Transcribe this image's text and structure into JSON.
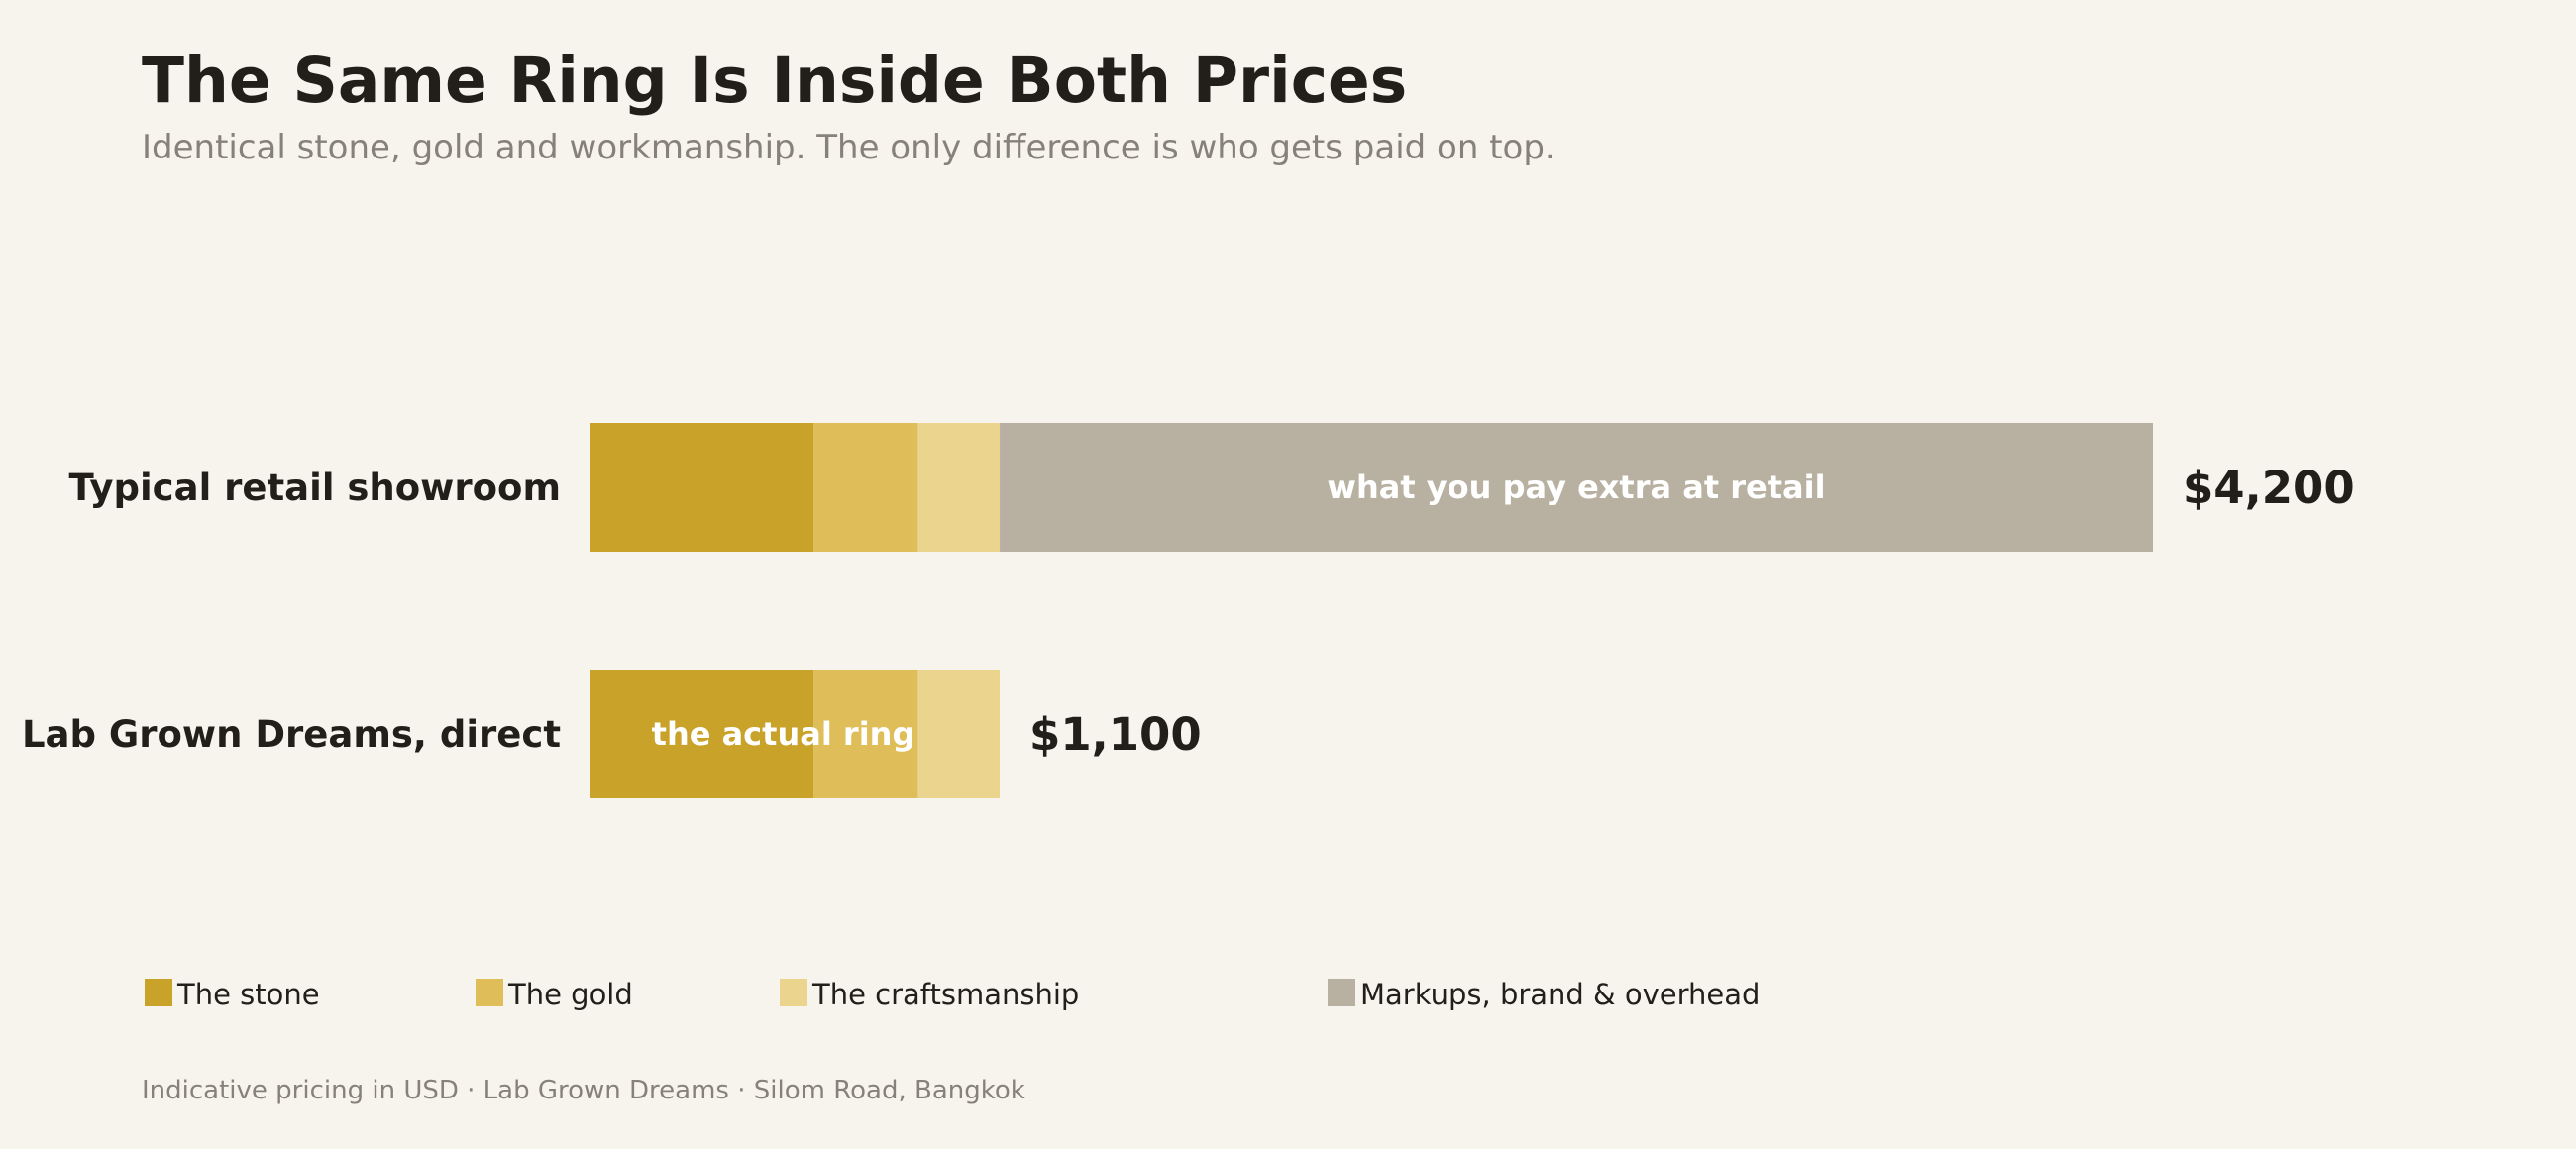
{
  "header": {
    "title": "The Same Ring Is Inside Both Prices",
    "subtitle": "Identical stone, gold and workmanship. The only difference is who gets paid on top."
  },
  "footer": {
    "text": "Indicative pricing in USD  ·  Lab Grown Dreams  ·  Silom Road, Bangkok"
  },
  "chart_data": {
    "type": "bar",
    "orientation": "horizontal",
    "stacked": true,
    "title": "The Same Ring Is Inside Both Prices",
    "subtitle": "Identical stone, gold and workmanship. The only difference is who gets paid on top.",
    "categories": [
      "Typical retail showroom",
      "Lab Grown Dreams, direct"
    ],
    "totals": [
      "$4,200",
      "$1,100"
    ],
    "total_values": [
      4200,
      1100
    ],
    "series": [
      {
        "name": "The stone",
        "color": "#c9a229",
        "values": [
          600,
          600
        ]
      },
      {
        "name": "The gold",
        "color": "#dfbe59",
        "values": [
          280,
          280
        ]
      },
      {
        "name": "The craftsmanship",
        "color": "#ebd48e",
        "values": [
          220,
          220
        ]
      },
      {
        "name": "Markups, brand & overhead",
        "color": "#b8b1a2",
        "values": [
          3100,
          0
        ]
      }
    ],
    "annotations": [
      {
        "category": "Typical retail showroom",
        "text": "what you pay extra at retail"
      },
      {
        "category": "Lab Grown Dreams, direct",
        "text": "the actual ring"
      }
    ],
    "xlim": [
      0,
      4200
    ],
    "grid": false,
    "legend": "bottom"
  }
}
